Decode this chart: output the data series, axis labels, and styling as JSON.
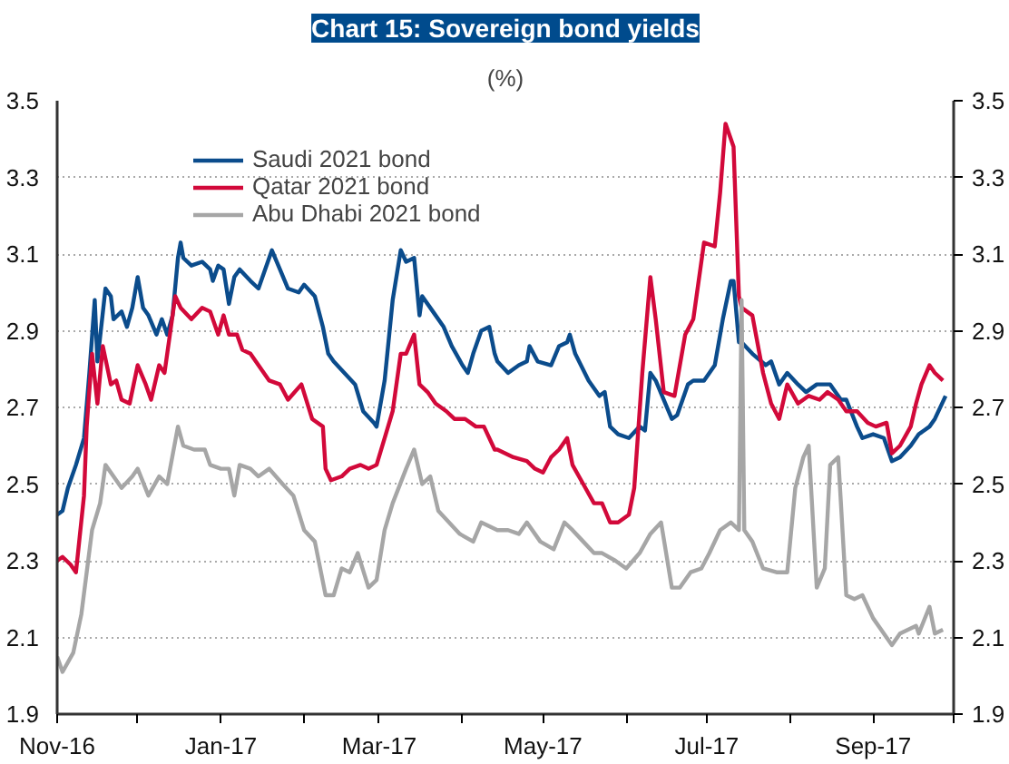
{
  "chart_data": {
    "type": "line",
    "title": "Chart 15: Sovereign bond yields",
    "subtitle": "(%)",
    "xlim": [
      "2016-11-01",
      "2017-10-01"
    ],
    "xticks": [
      {
        "value": "2016-11-01",
        "label": "Nov-16"
      },
      {
        "value": "2016-12-01",
        "label": null
      },
      {
        "value": "2017-01-01",
        "label": "Jan-17"
      },
      {
        "value": "2017-02-01",
        "label": null
      },
      {
        "value": "2017-03-01",
        "label": "Mar-17"
      },
      {
        "value": "2017-04-01",
        "label": null
      },
      {
        "value": "2017-05-01",
        "label": "May-17"
      },
      {
        "value": "2017-06-01",
        "label": null
      },
      {
        "value": "2017-07-01",
        "label": "Jul-17"
      },
      {
        "value": "2017-08-01",
        "label": null
      },
      {
        "value": "2017-09-01",
        "label": "Sep-17"
      },
      {
        "value": "2017-10-01",
        "label": null
      }
    ],
    "ylim": [
      1.9,
      3.5
    ],
    "yticks": [
      1.9,
      2.1,
      2.3,
      2.5,
      2.7,
      2.9,
      3.1,
      3.3,
      3.5
    ],
    "y2lim": [
      1.9,
      3.5
    ],
    "y2ticks": [
      1.9,
      2.1,
      2.3,
      2.5,
      2.7,
      2.9,
      3.1,
      3.3,
      3.5
    ],
    "grid": "y",
    "legend": "top left",
    "marker": "none",
    "line_style": "solid",
    "series": [
      {
        "name": "Saudi 2021 bond",
        "color": "#0b4c8c",
        "x": [
          "2016-11-01",
          "2016-11-03",
          "2016-11-05",
          "2016-11-08",
          "2016-11-11",
          "2016-11-13",
          "2016-11-15",
          "2016-11-16",
          "2016-11-19",
          "2016-11-21",
          "2016-11-22",
          "2016-11-25",
          "2016-11-27",
          "2016-11-29",
          "2016-12-01",
          "2016-12-03",
          "2016-12-05",
          "2016-12-08",
          "2016-12-10",
          "2016-12-12",
          "2016-12-14",
          "2016-12-16",
          "2016-12-17",
          "2016-12-18",
          "2016-12-21",
          "2016-12-25",
          "2016-12-28",
          "2016-12-29",
          "2016-12-31",
          "2017-01-02",
          "2017-01-04",
          "2017-01-06",
          "2017-01-08",
          "2017-01-12",
          "2017-01-15",
          "2017-01-20",
          "2017-01-23",
          "2017-01-26",
          "2017-01-30",
          "2017-02-01",
          "2017-02-05",
          "2017-02-08",
          "2017-02-10",
          "2017-02-12",
          "2017-02-16",
          "2017-02-20",
          "2017-02-23",
          "2017-02-27",
          "2017-02-28",
          "2017-03-03",
          "2017-03-06",
          "2017-03-09",
          "2017-03-11",
          "2017-03-14",
          "2017-03-16",
          "2017-03-17",
          "2017-03-21",
          "2017-03-25",
          "2017-03-28",
          "2017-04-01",
          "2017-04-03",
          "2017-04-05",
          "2017-04-08",
          "2017-04-11",
          "2017-04-13",
          "2017-04-14",
          "2017-04-18",
          "2017-04-22",
          "2017-04-25",
          "2017-04-26",
          "2017-04-29",
          "2017-05-04",
          "2017-05-07",
          "2017-05-10",
          "2017-05-11",
          "2017-05-13",
          "2017-05-18",
          "2017-05-22",
          "2017-05-24",
          "2017-05-26",
          "2017-05-29",
          "2017-06-02",
          "2017-06-06",
          "2017-06-08",
          "2017-06-10",
          "2017-06-12",
          "2017-06-15",
          "2017-06-18",
          "2017-06-20",
          "2017-06-24",
          "2017-06-26",
          "2017-06-30",
          "2017-07-04",
          "2017-07-07",
          "2017-07-10",
          "2017-07-11",
          "2017-07-13",
          "2017-07-14",
          "2017-07-18",
          "2017-07-23",
          "2017-07-25",
          "2017-07-28",
          "2017-07-31",
          "2017-08-04",
          "2017-08-07",
          "2017-08-11",
          "2017-08-16",
          "2017-08-20",
          "2017-08-22",
          "2017-08-26",
          "2017-08-28",
          "2017-09-01",
          "2017-09-05",
          "2017-09-08",
          "2017-09-11",
          "2017-09-15",
          "2017-09-18",
          "2017-09-22",
          "2017-09-24",
          "2017-09-28"
        ],
        "values": [
          2.42,
          2.43,
          2.49,
          2.55,
          2.62,
          2.79,
          2.98,
          2.82,
          3.01,
          2.99,
          2.93,
          2.95,
          2.91,
          2.96,
          3.04,
          2.96,
          2.94,
          2.89,
          2.93,
          2.89,
          2.94,
          3.09,
          3.13,
          3.09,
          3.07,
          3.08,
          3.06,
          3.03,
          3.07,
          3.06,
          2.97,
          3.04,
          3.06,
          3.03,
          3.01,
          3.11,
          3.06,
          3.01,
          3.0,
          3.02,
          2.99,
          2.91,
          2.84,
          2.82,
          2.79,
          2.76,
          2.69,
          2.66,
          2.65,
          2.77,
          2.98,
          3.11,
          3.08,
          3.09,
          2.94,
          2.99,
          2.95,
          2.91,
          2.86,
          2.81,
          2.79,
          2.84,
          2.9,
          2.91,
          2.84,
          2.82,
          2.79,
          2.81,
          2.82,
          2.86,
          2.82,
          2.81,
          2.86,
          2.87,
          2.89,
          2.84,
          2.77,
          2.73,
          2.74,
          2.65,
          2.63,
          2.62,
          2.65,
          2.64,
          2.79,
          2.77,
          2.72,
          2.67,
          2.68,
          2.76,
          2.77,
          2.77,
          2.81,
          2.93,
          3.03,
          3.03,
          2.87,
          2.87,
          2.84,
          2.81,
          2.82,
          2.76,
          2.79,
          2.76,
          2.74,
          2.76,
          2.76,
          2.72,
          2.72,
          2.65,
          2.62,
          2.63,
          2.62,
          2.56,
          2.57,
          2.6,
          2.63,
          2.65,
          2.67,
          2.73
        ]
      },
      {
        "name": "Qatar 2021 bond",
        "color": "#d2093a",
        "x": [
          "2016-11-01",
          "2016-11-03",
          "2016-11-06",
          "2016-11-08",
          "2016-11-11",
          "2016-11-12",
          "2016-11-14",
          "2016-11-16",
          "2016-11-18",
          "2016-11-21",
          "2016-11-23",
          "2016-11-25",
          "2016-11-28",
          "2016-12-01",
          "2016-12-04",
          "2016-12-06",
          "2016-12-09",
          "2016-12-11",
          "2016-12-15",
          "2016-12-17",
          "2016-12-21",
          "2016-12-25",
          "2016-12-28",
          "2016-12-31",
          "2017-01-02",
          "2017-01-04",
          "2017-01-07",
          "2017-01-09",
          "2017-01-12",
          "2017-01-14",
          "2017-01-19",
          "2017-01-23",
          "2017-01-26",
          "2017-01-31",
          "2017-02-04",
          "2017-02-08",
          "2017-02-09",
          "2017-02-11",
          "2017-02-15",
          "2017-02-18",
          "2017-02-22",
          "2017-02-25",
          "2017-02-28",
          "2017-03-03",
          "2017-03-06",
          "2017-03-09",
          "2017-03-11",
          "2017-03-14",
          "2017-03-16",
          "2017-03-19",
          "2017-03-22",
          "2017-03-26",
          "2017-03-29",
          "2017-04-02",
          "2017-04-06",
          "2017-04-09",
          "2017-04-13",
          "2017-04-14",
          "2017-04-20",
          "2017-04-25",
          "2017-04-28",
          "2017-05-01",
          "2017-05-04",
          "2017-05-07",
          "2017-05-10",
          "2017-05-12",
          "2017-05-16",
          "2017-05-20",
          "2017-05-23",
          "2017-05-26",
          "2017-05-29",
          "2017-06-02",
          "2017-06-04",
          "2017-06-07",
          "2017-06-10",
          "2017-06-12",
          "2017-06-15",
          "2017-06-19",
          "2017-06-23",
          "2017-06-26",
          "2017-06-30",
          "2017-07-04",
          "2017-07-06",
          "2017-07-08",
          "2017-07-11",
          "2017-07-13",
          "2017-07-14",
          "2017-07-18",
          "2017-07-22",
          "2017-07-25",
          "2017-07-28",
          "2017-07-31",
          "2017-08-04",
          "2017-08-08",
          "2017-08-12",
          "2017-08-15",
          "2017-08-19",
          "2017-08-22",
          "2017-08-26",
          "2017-08-30",
          "2017-09-02",
          "2017-09-06",
          "2017-09-08",
          "2017-09-11",
          "2017-09-15",
          "2017-09-17",
          "2017-09-19",
          "2017-09-22",
          "2017-09-24",
          "2017-09-27"
        ],
        "values": [
          2.3,
          2.31,
          2.29,
          2.27,
          2.47,
          2.65,
          2.84,
          2.71,
          2.86,
          2.76,
          2.77,
          2.72,
          2.71,
          2.81,
          2.76,
          2.72,
          2.81,
          2.79,
          2.99,
          2.96,
          2.93,
          2.96,
          2.95,
          2.89,
          2.94,
          2.89,
          2.89,
          2.85,
          2.84,
          2.82,
          2.77,
          2.76,
          2.72,
          2.76,
          2.67,
          2.65,
          2.54,
          2.51,
          2.52,
          2.54,
          2.55,
          2.54,
          2.55,
          2.62,
          2.69,
          2.84,
          2.84,
          2.89,
          2.76,
          2.74,
          2.71,
          2.69,
          2.67,
          2.67,
          2.65,
          2.65,
          2.59,
          2.59,
          2.57,
          2.56,
          2.54,
          2.53,
          2.57,
          2.59,
          2.62,
          2.55,
          2.5,
          2.45,
          2.45,
          2.4,
          2.4,
          2.42,
          2.49,
          2.79,
          3.04,
          2.93,
          2.74,
          2.73,
          2.89,
          2.93,
          3.13,
          3.12,
          3.26,
          3.44,
          3.38,
          2.99,
          2.96,
          2.94,
          2.79,
          2.71,
          2.67,
          2.76,
          2.71,
          2.73,
          2.72,
          2.74,
          2.72,
          2.69,
          2.69,
          2.66,
          2.65,
          2.66,
          2.58,
          2.6,
          2.65,
          2.71,
          2.76,
          2.81,
          2.79,
          2.77
        ]
      },
      {
        "name": "Abu Dhabi 2021 bond",
        "color": "#a6a6a6",
        "x": [
          "2016-11-01",
          "2016-11-03",
          "2016-11-07",
          "2016-11-10",
          "2016-11-12",
          "2016-11-14",
          "2016-11-17",
          "2016-11-19",
          "2016-11-22",
          "2016-11-25",
          "2016-11-29",
          "2016-12-01",
          "2016-12-05",
          "2016-12-09",
          "2016-12-12",
          "2016-12-16",
          "2016-12-18",
          "2016-12-22",
          "2016-12-26",
          "2016-12-28",
          "2017-01-01",
          "2017-01-04",
          "2017-01-06",
          "2017-01-08",
          "2017-01-12",
          "2017-01-15",
          "2017-01-19",
          "2017-01-24",
          "2017-01-28",
          "2017-02-01",
          "2017-02-05",
          "2017-02-09",
          "2017-02-12",
          "2017-02-15",
          "2017-02-18",
          "2017-02-21",
          "2017-02-25",
          "2017-02-28",
          "2017-03-03",
          "2017-03-06",
          "2017-03-11",
          "2017-03-14",
          "2017-03-17",
          "2017-03-20",
          "2017-03-23",
          "2017-03-27",
          "2017-03-31",
          "2017-04-05",
          "2017-04-08",
          "2017-04-14",
          "2017-04-18",
          "2017-04-22",
          "2017-04-25",
          "2017-04-30",
          "2017-05-05",
          "2017-05-09",
          "2017-05-12",
          "2017-05-16",
          "2017-05-20",
          "2017-05-23",
          "2017-05-28",
          "2017-06-01",
          "2017-06-06",
          "2017-06-10",
          "2017-06-14",
          "2017-06-18",
          "2017-06-21",
          "2017-06-25",
          "2017-06-29",
          "2017-07-02",
          "2017-07-06",
          "2017-07-10",
          "2017-07-13",
          "2017-07-14",
          "2017-07-15",
          "2017-07-18",
          "2017-07-22",
          "2017-07-27",
          "2017-07-31",
          "2017-08-03",
          "2017-08-06",
          "2017-08-08",
          "2017-08-11",
          "2017-08-14",
          "2017-08-16",
          "2017-08-19",
          "2017-08-22",
          "2017-08-25",
          "2017-08-28",
          "2017-09-01",
          "2017-09-05",
          "2017-09-08",
          "2017-09-11",
          "2017-09-17",
          "2017-09-18",
          "2017-09-22",
          "2017-09-24",
          "2017-09-27"
        ],
        "values": [
          2.05,
          2.01,
          2.06,
          2.16,
          2.27,
          2.38,
          2.45,
          2.55,
          2.52,
          2.49,
          2.52,
          2.54,
          2.47,
          2.52,
          2.5,
          2.65,
          2.6,
          2.59,
          2.59,
          2.55,
          2.54,
          2.54,
          2.47,
          2.55,
          2.54,
          2.52,
          2.54,
          2.5,
          2.47,
          2.38,
          2.35,
          2.21,
          2.21,
          2.28,
          2.27,
          2.32,
          2.23,
          2.25,
          2.38,
          2.45,
          2.54,
          2.59,
          2.5,
          2.52,
          2.43,
          2.4,
          2.37,
          2.35,
          2.4,
          2.38,
          2.38,
          2.37,
          2.4,
          2.35,
          2.33,
          2.4,
          2.38,
          2.35,
          2.32,
          2.32,
          2.3,
          2.28,
          2.32,
          2.37,
          2.4,
          2.23,
          2.23,
          2.27,
          2.28,
          2.32,
          2.38,
          2.4,
          2.38,
          2.98,
          2.38,
          2.35,
          2.28,
          2.27,
          2.27,
          2.49,
          2.57,
          2.6,
          2.23,
          2.28,
          2.55,
          2.57,
          2.21,
          2.2,
          2.21,
          2.15,
          2.11,
          2.08,
          2.11,
          2.13,
          2.11,
          2.18,
          2.11,
          2.12
        ]
      }
    ]
  }
}
